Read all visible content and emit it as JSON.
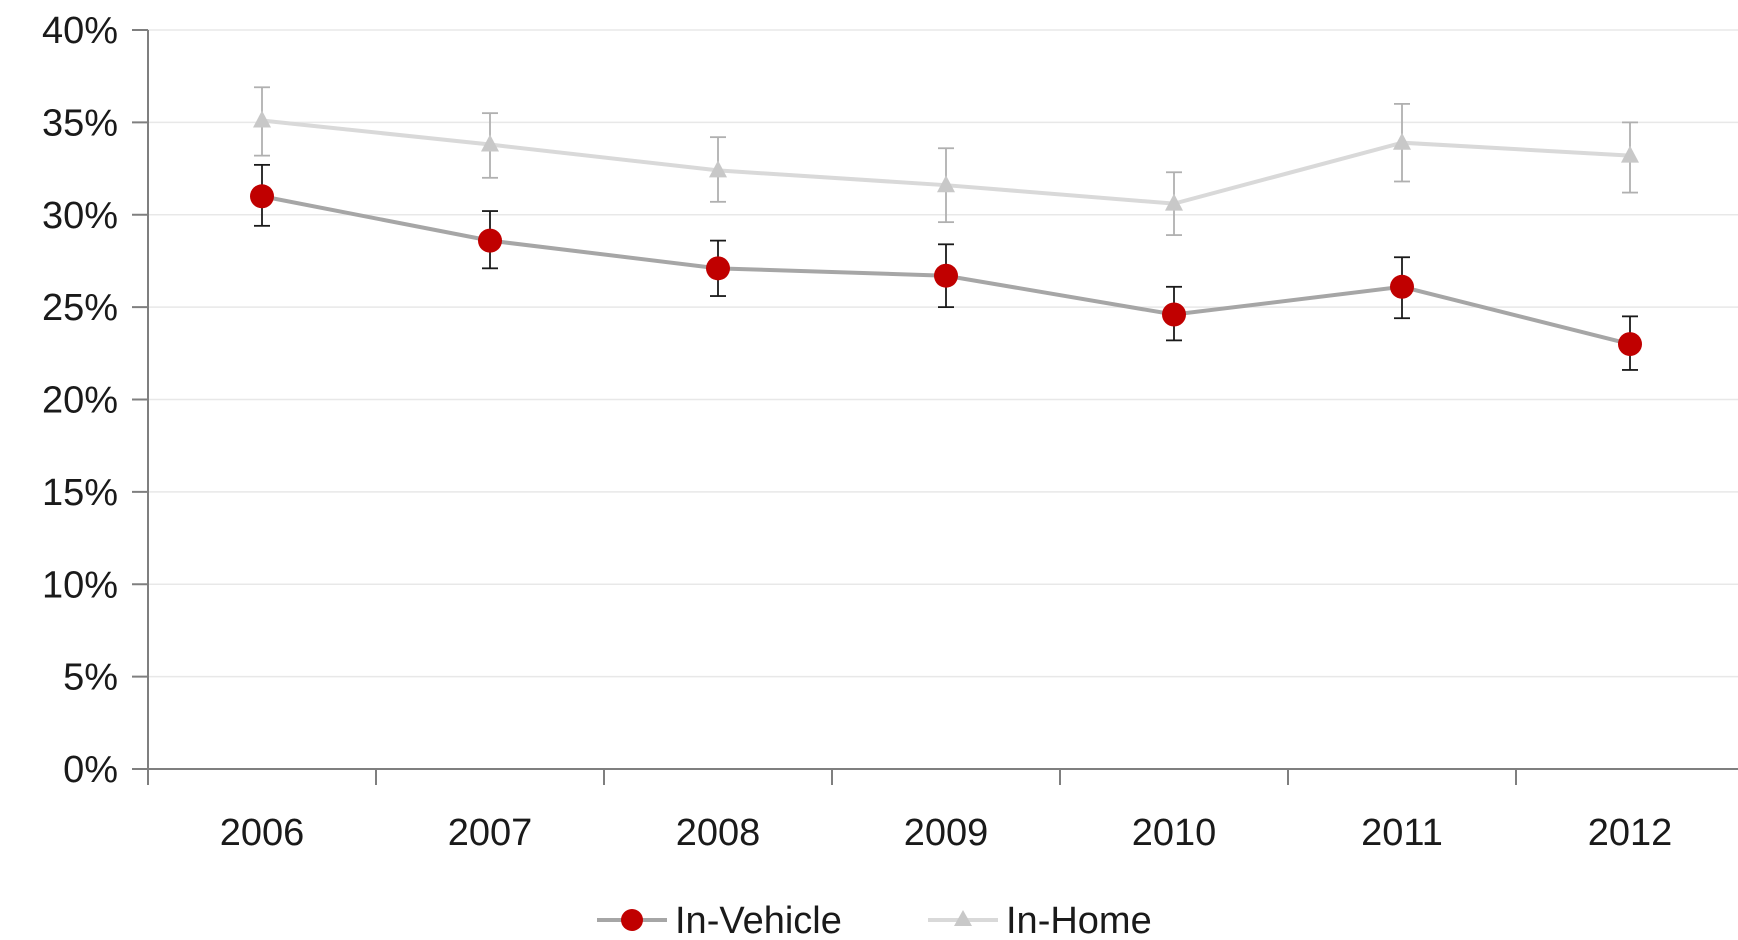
{
  "chart_data": {
    "type": "line",
    "title": "",
    "xlabel": "",
    "ylabel": "",
    "categories": [
      "2006",
      "2007",
      "2008",
      "2009",
      "2010",
      "2011",
      "2012"
    ],
    "ylim": [
      0,
      40
    ],
    "y_ticks": [
      0,
      5,
      10,
      15,
      20,
      25,
      30,
      35,
      40
    ],
    "y_tick_labels": [
      "0%",
      "5%",
      "10%",
      "15%",
      "20%",
      "25%",
      "30%",
      "35%",
      "40%"
    ],
    "grid": true,
    "legend_position": "bottom",
    "series": [
      {
        "name": "In-Vehicle",
        "marker": "circle",
        "line_color": "#a6a6a6",
        "marker_color": "#c00000",
        "values": [
          31.0,
          28.6,
          27.1,
          26.7,
          24.6,
          26.1,
          23.0
        ],
        "error_low": [
          29.4,
          27.1,
          25.6,
          25.0,
          23.2,
          24.4,
          21.6
        ],
        "error_high": [
          32.7,
          30.2,
          28.6,
          28.4,
          26.1,
          27.7,
          24.5
        ]
      },
      {
        "name": "In-Home",
        "marker": "triangle",
        "line_color": "#d9d9d9",
        "marker_color": "#c8c8c8",
        "values": [
          35.1,
          33.8,
          32.4,
          31.6,
          30.6,
          33.9,
          33.2
        ],
        "error_low": [
          33.2,
          32.0,
          30.7,
          29.6,
          28.9,
          31.8,
          31.2
        ],
        "error_high": [
          36.9,
          35.5,
          34.2,
          33.6,
          32.3,
          36.0,
          35.0
        ]
      }
    ]
  }
}
